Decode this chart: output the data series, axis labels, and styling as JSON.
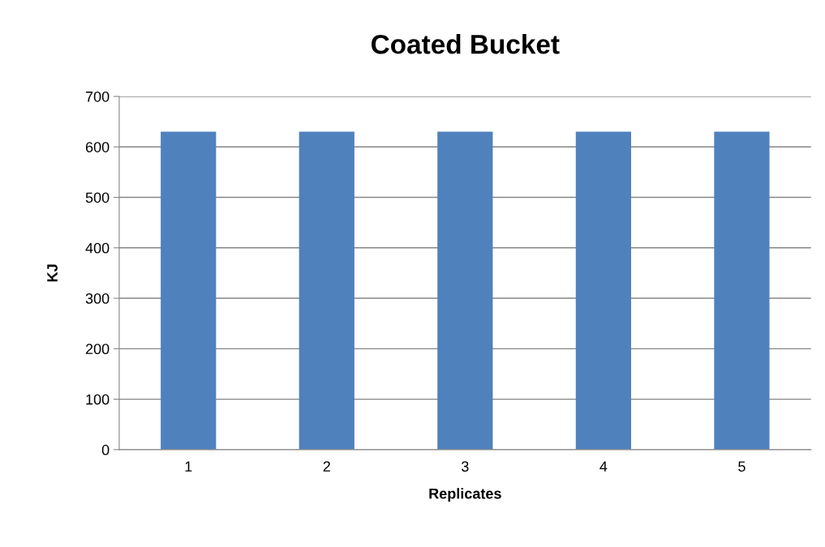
{
  "chart_data": {
    "type": "bar",
    "title": "Coated Bucket",
    "xlabel": "Replicates",
    "ylabel": "KJ",
    "categories": [
      "1",
      "2",
      "3",
      "4",
      "5"
    ],
    "values": [
      630,
      630,
      630,
      630,
      630
    ],
    "color": "#4f81bd",
    "ylim": [
      0,
      700
    ],
    "yticks": [
      0,
      100,
      200,
      300,
      400,
      500,
      600,
      700
    ],
    "grid": "y"
  }
}
